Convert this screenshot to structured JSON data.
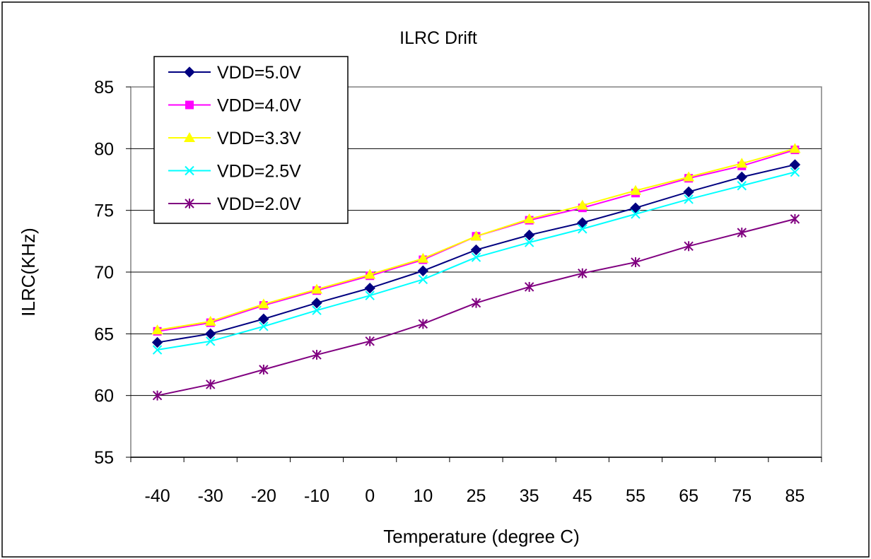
{
  "chart_data": {
    "type": "line",
    "title": "ILRC Drift",
    "xlabel": "Temperature (degree C)",
    "ylabel": "ILRC(KHz)",
    "categories": [
      "-40",
      "-30",
      "-20",
      "-10",
      "0",
      "10",
      "25",
      "35",
      "45",
      "55",
      "65",
      "75",
      "85"
    ],
    "ylim": [
      55,
      85
    ],
    "yticks": [
      55,
      60,
      65,
      70,
      75,
      80,
      85
    ],
    "grid": true,
    "legend_position": "top-left",
    "series": [
      {
        "name": "VDD=5.0V",
        "color": "#000080",
        "marker": "diamond",
        "values": [
          64.3,
          65.0,
          66.2,
          67.5,
          68.7,
          70.1,
          71.8,
          73.0,
          74.0,
          75.2,
          76.5,
          77.7,
          78.7
        ]
      },
      {
        "name": "VDD=4.0V",
        "color": "#ff00ff",
        "marker": "square",
        "values": [
          65.2,
          65.9,
          67.3,
          68.5,
          69.7,
          71.0,
          72.9,
          74.2,
          75.2,
          76.4,
          77.6,
          78.6,
          79.9
        ]
      },
      {
        "name": "VDD=3.3V",
        "color": "#ffff00",
        "marker": "triangle",
        "values": [
          65.3,
          66.0,
          67.4,
          68.6,
          69.8,
          71.1,
          72.9,
          74.3,
          75.4,
          76.6,
          77.7,
          78.8,
          80.0
        ]
      },
      {
        "name": "VDD=2.5V",
        "color": "#00ffff",
        "marker": "x",
        "values": [
          63.7,
          64.4,
          65.6,
          66.9,
          68.1,
          69.4,
          71.2,
          72.4,
          73.5,
          74.7,
          75.9,
          77.0,
          78.1
        ]
      },
      {
        "name": "VDD=2.0V",
        "color": "#800080",
        "marker": "star",
        "values": [
          60.0,
          60.9,
          62.1,
          63.3,
          64.4,
          65.8,
          67.5,
          68.8,
          69.9,
          70.8,
          72.1,
          73.2,
          74.3
        ]
      }
    ]
  }
}
